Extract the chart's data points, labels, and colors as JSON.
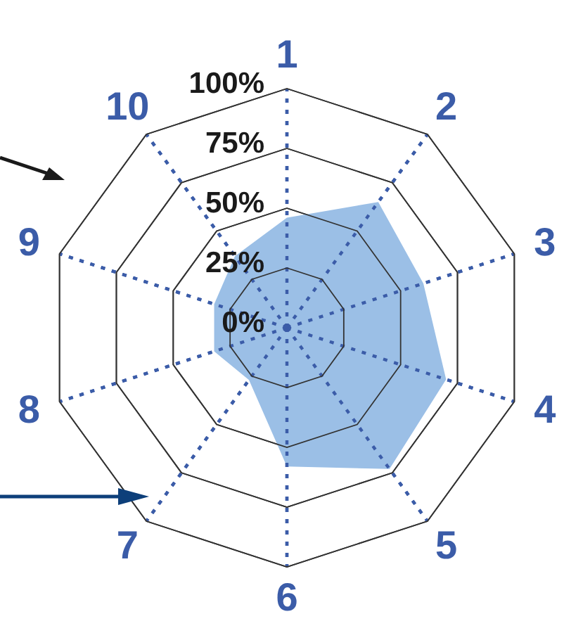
{
  "chart_data": {
    "type": "radar",
    "categories": [
      "1",
      "2",
      "3",
      "4",
      "5",
      "6",
      "7",
      "8",
      "9",
      "10"
    ],
    "series": [
      {
        "color": "#9bbfe6",
        "values": [
          46,
          65,
          60,
          70,
          73,
          58,
          27,
          32,
          32,
          37
        ]
      }
    ],
    "ylim": [
      0,
      100
    ],
    "yticks": [
      {
        "value": 0,
        "label": "0%"
      },
      {
        "value": 25,
        "label": "25%"
      },
      {
        "value": 50,
        "label": "50%"
      },
      {
        "value": 75,
        "label": "75%"
      },
      {
        "value": 100,
        "label": "100%"
      }
    ]
  }
}
